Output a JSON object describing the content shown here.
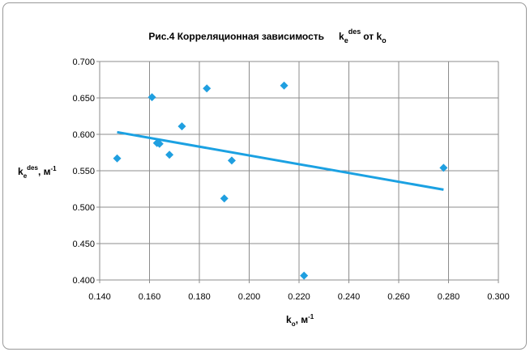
{
  "chart_data": {
    "type": "scatter",
    "title": [
      "Рис.4 Корреляционная зависимость",
      "k",
      "e",
      "des",
      "от k",
      "o"
    ],
    "x_label": [
      "k",
      "o",
      ", м",
      "-1"
    ],
    "y_label": [
      "k",
      "e",
      "des",
      ", м",
      "-1"
    ],
    "x": [
      0.147,
      0.161,
      0.163,
      0.164,
      0.168,
      0.173,
      0.183,
      0.19,
      0.193,
      0.214,
      0.222,
      0.278
    ],
    "values": [
      0.567,
      0.651,
      0.588,
      0.587,
      0.572,
      0.611,
      0.663,
      0.512,
      0.564,
      0.667,
      0.406,
      0.554
    ],
    "color": "#1f9fe0",
    "trendline": {
      "x": [
        0.147,
        0.278
      ],
      "y": [
        0.603,
        0.524
      ],
      "color": "#1ba1e2"
    },
    "xlim": [
      0.14,
      0.3
    ],
    "ylim": [
      0.4,
      0.7
    ],
    "xticks": [
      {
        "value": 0.14,
        "label": "0.140"
      },
      {
        "value": 0.16,
        "label": "0.160"
      },
      {
        "value": 0.18,
        "label": "0.180"
      },
      {
        "value": 0.2,
        "label": "0.200"
      },
      {
        "value": 0.22,
        "label": "0.220"
      },
      {
        "value": 0.24,
        "label": "0.240"
      },
      {
        "value": 0.26,
        "label": "0.260"
      },
      {
        "value": 0.28,
        "label": "0.280"
      },
      {
        "value": 0.3,
        "label": "0.300"
      }
    ],
    "yticks": [
      {
        "value": 0.4,
        "label": "0.400"
      },
      {
        "value": 0.45,
        "label": "0.450"
      },
      {
        "value": 0.5,
        "label": "0.500"
      },
      {
        "value": 0.55,
        "label": "0.550"
      },
      {
        "value": 0.6,
        "label": "0.600"
      },
      {
        "value": 0.65,
        "label": "0.650"
      },
      {
        "value": 0.7,
        "label": "0.700"
      }
    ],
    "grid": true
  }
}
